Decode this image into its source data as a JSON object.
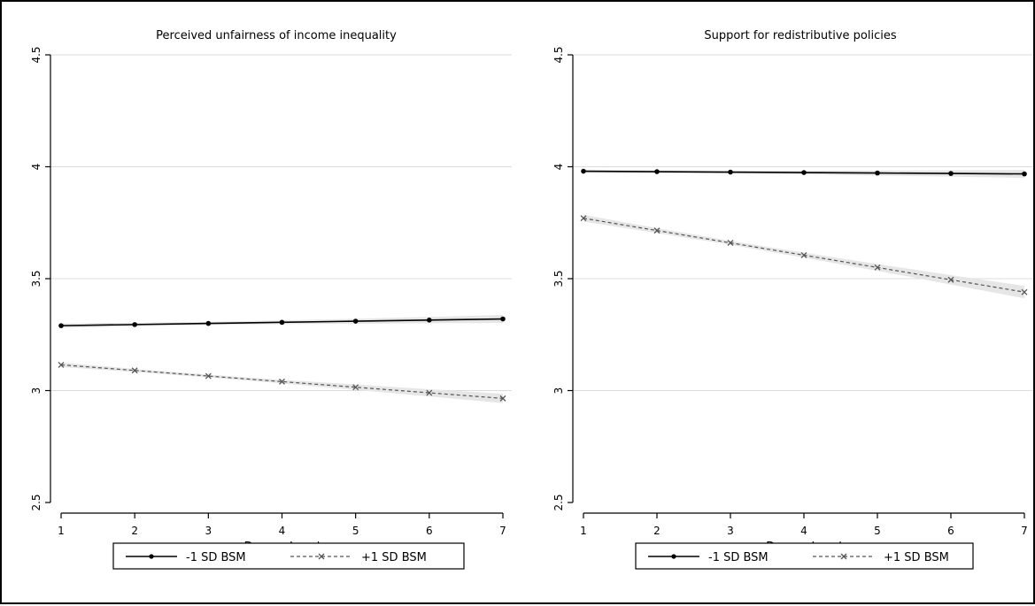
{
  "chart_data": [
    {
      "type": "line",
      "title": "Perceived unfairness of income inequality",
      "xlabel": "Degree Level",
      "ylabel": "",
      "x": [
        1,
        2,
        3,
        4,
        5,
        6,
        7
      ],
      "x_ticks": [
        "1",
        "2",
        "3",
        "4",
        "5",
        "6",
        "7"
      ],
      "ylim": [
        2.5,
        4.5
      ],
      "y_ticks": [
        "2.5",
        "3",
        "3.5",
        "4",
        "4.5"
      ],
      "grid": true,
      "legend_position": "bottom",
      "series": [
        {
          "name": "-1 SD BSM",
          "style": "solid",
          "marker": "dot",
          "color": "#000000",
          "values": [
            3.29,
            3.295,
            3.3,
            3.305,
            3.31,
            3.315,
            3.32
          ],
          "ci_lower": [
            3.28,
            3.287,
            3.293,
            3.297,
            3.299,
            3.301,
            3.302
          ],
          "ci_upper": [
            3.3,
            3.303,
            3.307,
            3.313,
            3.321,
            3.329,
            3.338
          ]
        },
        {
          "name": "+1 SD BSM",
          "style": "dashed",
          "marker": "x",
          "color": "#555555",
          "values": [
            3.115,
            3.09,
            3.065,
            3.04,
            3.015,
            2.99,
            2.965
          ],
          "ci_lower": [
            3.105,
            3.083,
            3.059,
            3.032,
            3.003,
            2.974,
            2.944
          ],
          "ci_upper": [
            3.125,
            3.097,
            3.071,
            3.048,
            3.027,
            3.006,
            2.986
          ]
        }
      ]
    },
    {
      "type": "line",
      "title": "Support for redistributive policies",
      "xlabel": "Degree Level",
      "ylabel": "",
      "x": [
        1,
        2,
        3,
        4,
        5,
        6,
        7
      ],
      "x_ticks": [
        "1",
        "2",
        "3",
        "4",
        "5",
        "6",
        "7"
      ],
      "ylim": [
        2.5,
        4.5
      ],
      "y_ticks": [
        "2.5",
        "3",
        "3.5",
        "4",
        "4.5"
      ],
      "grid": true,
      "legend_position": "bottom",
      "series": [
        {
          "name": "-1 SD BSM",
          "style": "solid",
          "marker": "dot",
          "color": "#000000",
          "values": [
            3.98,
            3.978,
            3.976,
            3.974,
            3.972,
            3.97,
            3.968
          ],
          "ci_lower": [
            3.973,
            3.972,
            3.97,
            3.966,
            3.961,
            3.956,
            3.95
          ],
          "ci_upper": [
            3.987,
            3.984,
            3.982,
            3.982,
            3.983,
            3.984,
            3.986
          ]
        },
        {
          "name": "+1 SD BSM",
          "style": "dashed",
          "marker": "x",
          "color": "#555555",
          "values": [
            3.77,
            3.715,
            3.66,
            3.605,
            3.55,
            3.495,
            3.44
          ],
          "ci_lower": [
            3.755,
            3.704,
            3.651,
            3.594,
            3.535,
            3.474,
            3.412
          ],
          "ci_upper": [
            3.785,
            3.726,
            3.669,
            3.616,
            3.565,
            3.516,
            3.468
          ]
        }
      ]
    }
  ]
}
